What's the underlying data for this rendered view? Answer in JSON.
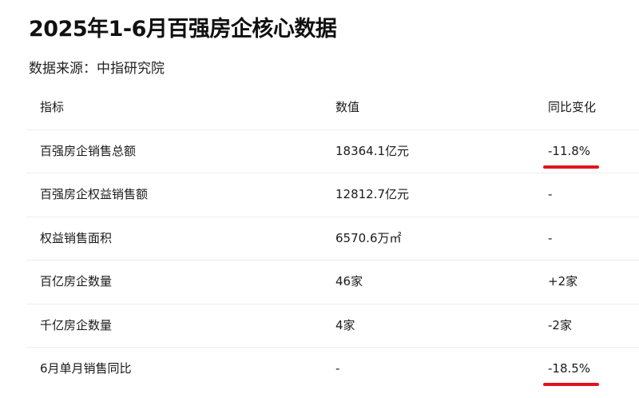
{
  "title": "2025年1-6月百强房企核心数据",
  "source": "数据来源：中指研究院",
  "table": {
    "headers": [
      "指标",
      "数值",
      "同比变化"
    ],
    "rows": [
      {
        "indicator": "百强房企销售总额",
        "value": "18364.1亿元",
        "change": "-11.8%",
        "underlined": true
      },
      {
        "indicator": "百强房企权益销售额",
        "value": "12812.7亿元",
        "change": "-",
        "underlined": false
      },
      {
        "indicator": "权益销售面积",
        "value": "6570.6万㎡",
        "change": "-",
        "underlined": false
      },
      {
        "indicator": "百亿房企数量",
        "value": "46家",
        "change": "+2家",
        "underlined": false
      },
      {
        "indicator": "千亿房企数量",
        "value": "4家",
        "change": "-2家",
        "underlined": false
      },
      {
        "indicator": "6月单月销售同比",
        "value": "-",
        "change": "-18.5%",
        "underlined": true
      }
    ]
  },
  "colors": {
    "underline": "#e0141e"
  }
}
